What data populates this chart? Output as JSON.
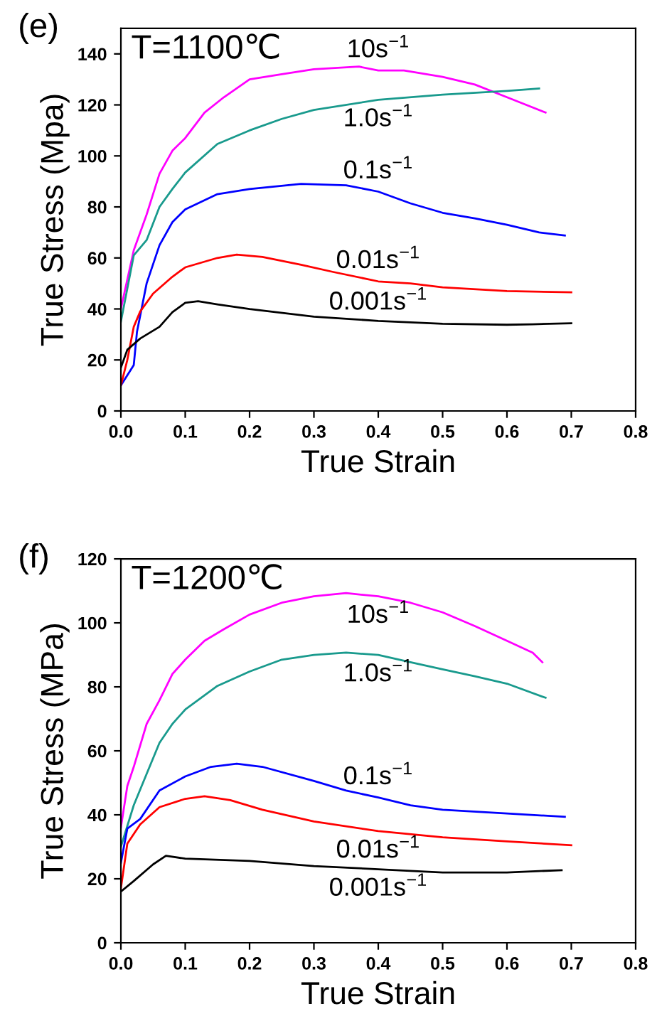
{
  "chart_data": [
    {
      "type": "line",
      "title": "(e)",
      "xlabel": "True Strain",
      "ylabel": "True Stress (Mpa)",
      "xlim": [
        0,
        0.8
      ],
      "ylim": [
        0,
        150
      ],
      "xticks": [
        {
          "value": 0,
          "label": "0.0"
        },
        0.1,
        0.2,
        0.3,
        0.4,
        0.5,
        0.6,
        0.7,
        0.8
      ],
      "yticks": [
        0,
        20,
        40,
        60,
        80,
        100,
        120,
        140
      ],
      "annotations": [
        "T=1100℃"
      ],
      "series": [
        {
          "name": "10s$^{−1}$",
          "color": "#ff00ff",
          "x": [
            0,
            0.02,
            0.04,
            0.06,
            0.08,
            0.1,
            0.13,
            0.16,
            0.2,
            0.25,
            0.3,
            0.37,
            0.4,
            0.44,
            0.5,
            0.55,
            0.6,
            0.66
          ],
          "values": [
            40,
            63,
            77,
            93,
            102,
            107,
            117,
            123,
            130,
            132,
            134,
            135,
            133.5,
            133.5,
            131,
            128,
            123,
            117
          ]
        },
        {
          "name": "1.0s$^{−1}$",
          "color": "#199a8d",
          "x": [
            0,
            0.02,
            0.04,
            0.06,
            0.08,
            0.1,
            0.15,
            0.2,
            0.25,
            0.3,
            0.4,
            0.5,
            0.6,
            0.65
          ],
          "values": [
            35,
            61,
            67,
            80,
            87,
            93.5,
            104.7,
            110,
            114.5,
            118,
            122,
            124,
            125.5,
            126.4
          ]
        },
        {
          "name": "0.1s$^{−1}$",
          "color": "#0000ff",
          "x": [
            0,
            0.02,
            0.025,
            0.04,
            0.06,
            0.08,
            0.1,
            0.15,
            0.2,
            0.28,
            0.35,
            0.4,
            0.45,
            0.5,
            0.55,
            0.6,
            0.65,
            0.69
          ],
          "values": [
            10,
            18,
            31,
            50,
            65,
            74,
            79,
            85,
            87,
            89,
            88.5,
            86,
            81.4,
            77.7,
            75.5,
            73,
            70,
            68.8
          ]
        },
        {
          "name": "0.01s$^{−1}$",
          "color": "#ff0000",
          "x": [
            0,
            0.01,
            0.02,
            0.03,
            0.05,
            0.08,
            0.1,
            0.15,
            0.18,
            0.22,
            0.28,
            0.33,
            0.4,
            0.45,
            0.5,
            0.6,
            0.7
          ],
          "values": [
            10,
            20,
            33,
            39,
            46,
            52.6,
            56.3,
            60,
            61.3,
            60.4,
            57.3,
            54.5,
            50.8,
            50,
            48.5,
            47,
            46.5
          ]
        },
        {
          "name": "0.001s$^{−1}$",
          "color": "#000000",
          "x": [
            0,
            0.01,
            0.03,
            0.06,
            0.08,
            0.1,
            0.12,
            0.15,
            0.2,
            0.3,
            0.4,
            0.5,
            0.6,
            0.64,
            0.7
          ],
          "values": [
            17,
            24,
            28.4,
            33,
            38.7,
            42.4,
            43,
            41.8,
            40,
            37,
            35.3,
            34.2,
            33.8,
            34,
            34.4
          ]
        }
      ]
    },
    {
      "type": "line",
      "title": "(f)",
      "xlabel": "True Strain",
      "ylabel": "True Stress (MPa)",
      "xlim": [
        0,
        0.8
      ],
      "ylim": [
        0,
        120
      ],
      "xticks": [
        {
          "value": 0,
          "label": "0.0"
        },
        0.1,
        0.2,
        0.3,
        0.4,
        0.5,
        0.6,
        0.7,
        0.8
      ],
      "yticks": [
        0,
        20,
        40,
        60,
        80,
        100,
        120
      ],
      "annotations": [
        "T=1200℃"
      ],
      "series": [
        {
          "name": "10s$^{−1}$",
          "color": "#ff00ff",
          "x": [
            0,
            0.01,
            0.02,
            0.04,
            0.06,
            0.08,
            0.1,
            0.13,
            0.16,
            0.2,
            0.25,
            0.3,
            0.35,
            0.4,
            0.45,
            0.5,
            0.55,
            0.6,
            0.64,
            0.655
          ],
          "values": [
            36,
            49,
            55,
            68.4,
            75.8,
            84,
            88.5,
            94.4,
            98,
            102.6,
            106.3,
            108.3,
            109.3,
            108.3,
            106.3,
            103.3,
            99,
            94.4,
            90.7,
            87.7
          ]
        },
        {
          "name": "1.0s$^{−1}$",
          "color": "#199a8d",
          "x": [
            0,
            0.02,
            0.04,
            0.06,
            0.08,
            0.1,
            0.15,
            0.2,
            0.25,
            0.3,
            0.35,
            0.4,
            0.45,
            0.5,
            0.55,
            0.6,
            0.66
          ],
          "values": [
            30,
            43,
            52.8,
            62.5,
            68.4,
            72.9,
            80.3,
            84.8,
            88.5,
            90,
            90.7,
            90,
            87.7,
            85.5,
            83.3,
            81,
            76.6
          ]
        },
        {
          "name": "0.1s$^{−1}$",
          "color": "#0000ff",
          "x": [
            0,
            0.01,
            0.03,
            0.06,
            0.1,
            0.14,
            0.18,
            0.22,
            0.3,
            0.35,
            0.4,
            0.45,
            0.5,
            0.6,
            0.69
          ],
          "values": [
            25,
            35.7,
            38.7,
            47.6,
            52,
            55,
            56,
            55,
            50.6,
            47.6,
            45.4,
            43,
            41.6,
            40.4,
            39.4
          ]
        },
        {
          "name": "0.01s$^{−1}$",
          "color": "#ff0000",
          "x": [
            0,
            0.01,
            0.03,
            0.06,
            0.1,
            0.13,
            0.17,
            0.22,
            0.3,
            0.4,
            0.5,
            0.6,
            0.7
          ],
          "values": [
            17,
            31,
            37,
            42.4,
            45,
            45.8,
            44.6,
            41.6,
            37.9,
            34.9,
            33,
            31.7,
            30.5
          ]
        },
        {
          "name": "0.001s$^{−1}$",
          "color": "#000000",
          "x": [
            0,
            0.02,
            0.05,
            0.07,
            0.1,
            0.2,
            0.3,
            0.4,
            0.5,
            0.6,
            0.685
          ],
          "values": [
            16,
            19.3,
            24.5,
            27.2,
            26.3,
            25.6,
            24,
            23,
            22,
            22,
            22.7
          ]
        }
      ]
    }
  ]
}
